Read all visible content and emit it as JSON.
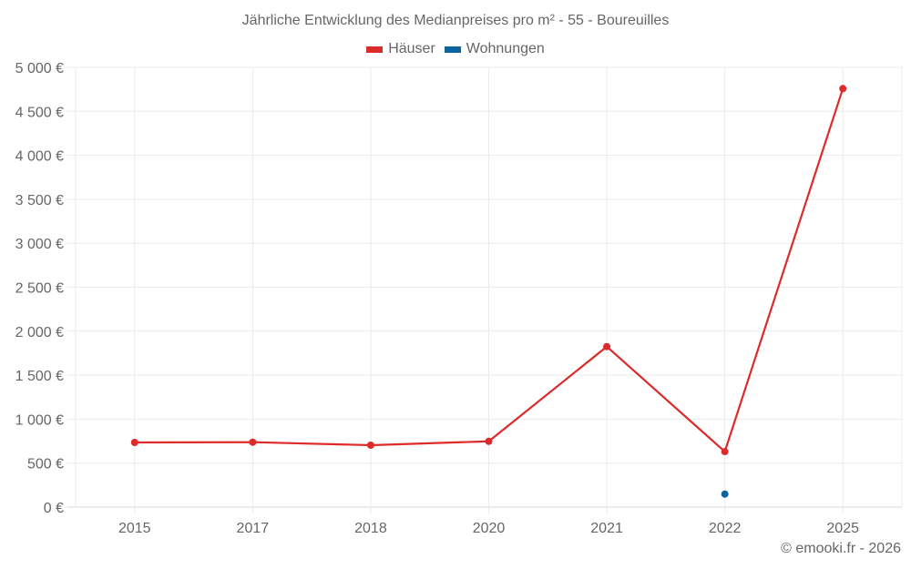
{
  "chart_data": {
    "type": "line",
    "title": "Jährliche Entwicklung des Medianpreises pro m² - 55 - Boureuilles",
    "categories": [
      "2015",
      "2017",
      "2018",
      "2020",
      "2021",
      "2022",
      "2025"
    ],
    "series": [
      {
        "name": "Häuser",
        "color": "#dd2a2a",
        "values": [
          735,
          738,
          704,
          748,
          1825,
          631,
          4759
        ]
      },
      {
        "name": "Wohnungen",
        "color": "#0b64a0",
        "values": [
          null,
          null,
          null,
          null,
          null,
          148,
          null
        ]
      }
    ],
    "xlabel": "",
    "ylabel": "",
    "ylim": [
      0,
      5000
    ],
    "yticks": [
      "0 €",
      "500 €",
      "1 000 €",
      "1 500 €",
      "2 000 €",
      "2 500 €",
      "3 000 €",
      "3 500 €",
      "4 000 €",
      "4 500 €",
      "5 000 €"
    ],
    "grid": true,
    "legend_position": "top"
  },
  "header": {
    "title": "Jährliche Entwicklung des Medianpreises pro m² - 55 - Boureuilles"
  },
  "legend": {
    "items": [
      {
        "label": "Häuser",
        "color": "#dd2a2a"
      },
      {
        "label": "Wohnungen",
        "color": "#0b64a0"
      }
    ]
  },
  "footer": {
    "credit": "© emooki.fr - 2026"
  }
}
